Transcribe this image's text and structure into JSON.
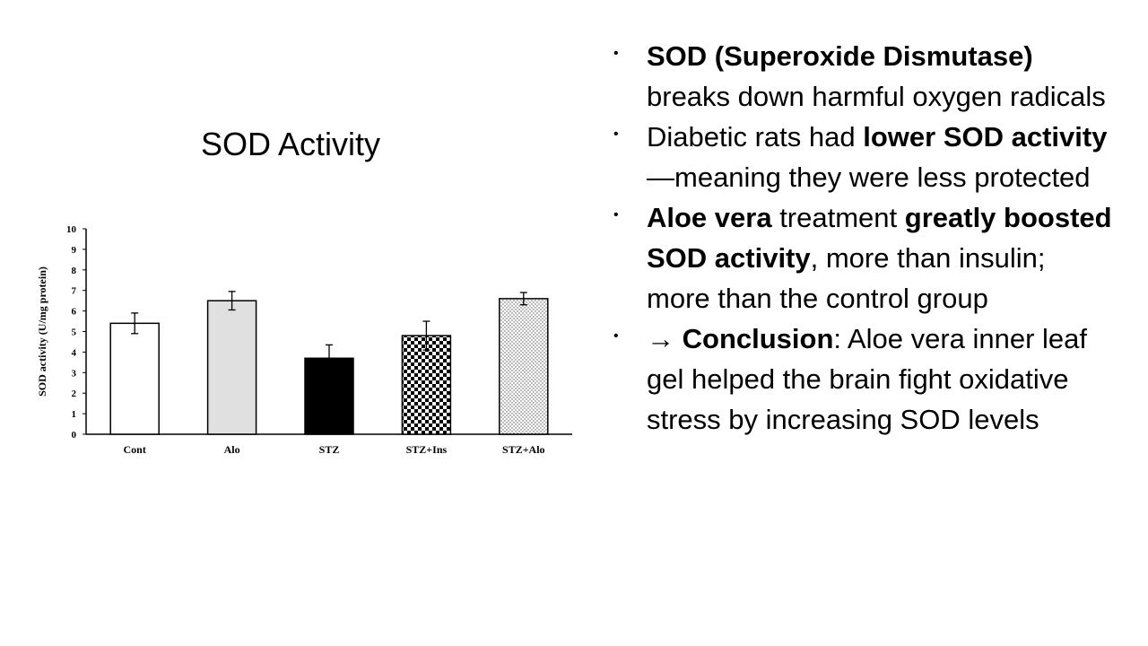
{
  "slide": {
    "title": "SOD Activity"
  },
  "bullets": [
    {
      "parts": [
        {
          "text": "SOD (Superoxide Dismutase)",
          "bold": true
        },
        {
          "text": " breaks down harmful oxygen radicals",
          "bold": false
        }
      ]
    },
    {
      "parts": [
        {
          "text": "Diabetic rats had ",
          "bold": false
        },
        {
          "text": "lower SOD activity",
          "bold": true
        },
        {
          "text": "—meaning they were less protected",
          "bold": false
        }
      ]
    },
    {
      "parts": [
        {
          "text": "Aloe vera",
          "bold": true
        },
        {
          "text": " treatment ",
          "bold": false
        },
        {
          "text": "greatly boosted SOD activity",
          "bold": true
        },
        {
          "text": ", more than insulin; more than the control group",
          "bold": false
        }
      ]
    },
    {
      "parts": [
        {
          "text": "→ ",
          "bold": false
        },
        {
          "text": "Conclusion",
          "bold": true
        },
        {
          "text": ": Aloe vera inner leaf gel helped the brain fight oxidative stress by increasing SOD levels",
          "bold": false
        }
      ]
    }
  ],
  "bullet_glyph": "•",
  "chart_data": {
    "type": "bar",
    "title": "",
    "xlabel": "",
    "ylabel": "SOD activity (U/mg protein)",
    "ylim": [
      0,
      10
    ],
    "yticks": [
      0,
      1,
      2,
      3,
      4,
      5,
      6,
      7,
      8,
      9,
      10
    ],
    "grid": false,
    "categories": [
      "Cont",
      "Alo",
      "STZ",
      "STZ+Ins",
      "STZ+Alo"
    ],
    "values": [
      5.4,
      6.5,
      3.7,
      4.8,
      6.6
    ],
    "errors": [
      0.5,
      0.45,
      0.65,
      0.7,
      0.3
    ],
    "fills": [
      "white",
      "light-gray",
      "black",
      "checkerboard",
      "dotted"
    ],
    "colors": {
      "white": "#ffffff",
      "light-gray": "#e0e0e0",
      "black": "#000000",
      "outline": "#000000"
    }
  }
}
